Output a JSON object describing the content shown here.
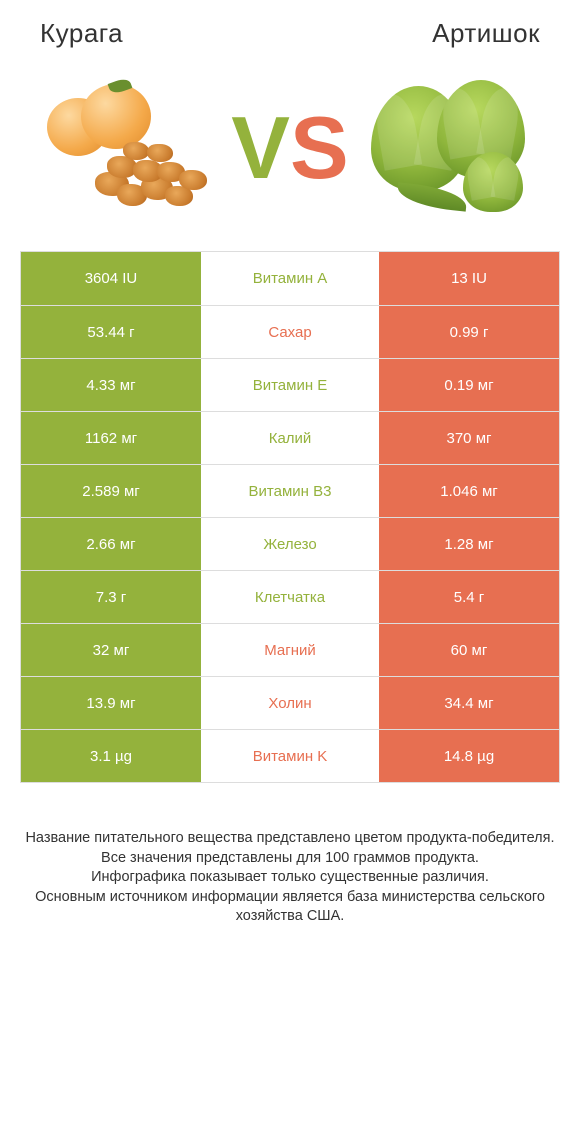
{
  "colors": {
    "left": "#94b23c",
    "right": "#e76f51",
    "vs_v": "#94b23c",
    "vs_s": "#e76f51",
    "border": "#dddddd",
    "text": "#333333",
    "bg": "#ffffff"
  },
  "header": {
    "left_title": "Курага",
    "right_title": "Артишок"
  },
  "comparison": {
    "rows": [
      {
        "label": "Витамин A",
        "left": "3604 IU",
        "right": "13 IU",
        "winner": "left"
      },
      {
        "label": "Сахар",
        "left": "53.44 г",
        "right": "0.99 г",
        "winner": "right"
      },
      {
        "label": "Витамин E",
        "left": "4.33 мг",
        "right": "0.19 мг",
        "winner": "left"
      },
      {
        "label": "Калий",
        "left": "1162 мг",
        "right": "370 мг",
        "winner": "left"
      },
      {
        "label": "Витамин B3",
        "left": "2.589 мг",
        "right": "1.046 мг",
        "winner": "left"
      },
      {
        "label": "Железо",
        "left": "2.66 мг",
        "right": "1.28 мг",
        "winner": "left"
      },
      {
        "label": "Клетчатка",
        "left": "7.3 г",
        "right": "5.4 г",
        "winner": "left"
      },
      {
        "label": "Магний",
        "left": "32 мг",
        "right": "60 мг",
        "winner": "right"
      },
      {
        "label": "Холин",
        "left": "13.9 мг",
        "right": "34.4 мг",
        "winner": "right"
      },
      {
        "label": "Витамин K",
        "left": "3.1 µg",
        "right": "14.8 µg",
        "winner": "right"
      }
    ]
  },
  "footer": {
    "line1": "Название питательного вещества представлено цветом продукта-победителя.",
    "line2": "Все значения представлены для 100 граммов продукта.",
    "line3": "Инфографика показывает только существенные различия.",
    "line4": "Основным источником информации является база министерства сельского хозяйства США."
  }
}
